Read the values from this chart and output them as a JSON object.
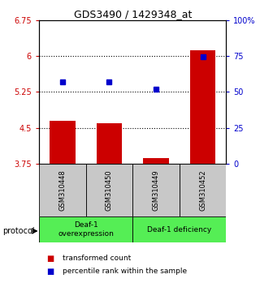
{
  "title": "GDS3490 / 1429348_at",
  "samples": [
    "GSM310448",
    "GSM310450",
    "GSM310449",
    "GSM310452"
  ],
  "bar_bottom": 3.75,
  "bar_tops": [
    4.65,
    4.6,
    3.87,
    6.12
  ],
  "blue_y": [
    5.45,
    5.45,
    5.3,
    5.98
  ],
  "ylim_left": [
    3.75,
    6.75
  ],
  "ylim_right": [
    0,
    100
  ],
  "left_ticks": [
    3.75,
    4.5,
    5.25,
    6.0,
    6.75
  ],
  "left_tick_labels": [
    "3.75",
    "4.5",
    "5.25",
    "6",
    "6.75"
  ],
  "right_ticks": [
    0,
    25,
    50,
    75,
    100
  ],
  "right_tick_labels": [
    "0",
    "25",
    "50",
    "75",
    "100%"
  ],
  "hlines": [
    6.0,
    5.25,
    4.5
  ],
  "bar_color": "#cc0000",
  "blue_color": "#0000cc",
  "gray_bg": "#c8c8c8",
  "green_bg": "#55ee55",
  "groups": [
    {
      "label": "Deaf-1\noverexpression",
      "start": 0,
      "end": 2
    },
    {
      "label": "Deaf-1 deficiency",
      "start": 2,
      "end": 4
    }
  ],
  "protocol_label": "protocol",
  "legend_bar_label": "transformed count",
  "legend_dot_label": "percentile rank within the sample",
  "title_fontsize": 9,
  "tick_fontsize": 7,
  "sample_fontsize": 6,
  "group_fontsize": 6.5,
  "legend_fontsize": 6.5
}
